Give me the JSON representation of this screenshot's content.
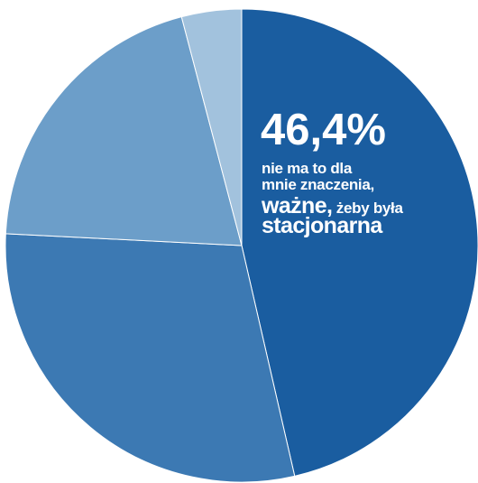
{
  "chart_data": {
    "type": "pie",
    "start_angle_deg": 0,
    "direction": "clockwise",
    "slices": [
      {
        "value": 46.4,
        "color": "#1a5da0",
        "label": "46,4%"
      },
      {
        "value": 29.4,
        "color": "#3c79b3",
        "label": ""
      },
      {
        "value": 20.1,
        "color": "#6c9ec9",
        "label": ""
      },
      {
        "value": 4.1,
        "color": "#a2c2dd",
        "label": ""
      }
    ],
    "annotation": {
      "percent": "46,4%",
      "line1": "nie ma to dla",
      "line2": "mnie znaczenia,",
      "line3_emph": "ważne,",
      "line3_rest": " żeby była",
      "line4": "stacjonarna"
    },
    "colors": {
      "stroke": "#ffffff",
      "text": "#ffffff"
    }
  }
}
